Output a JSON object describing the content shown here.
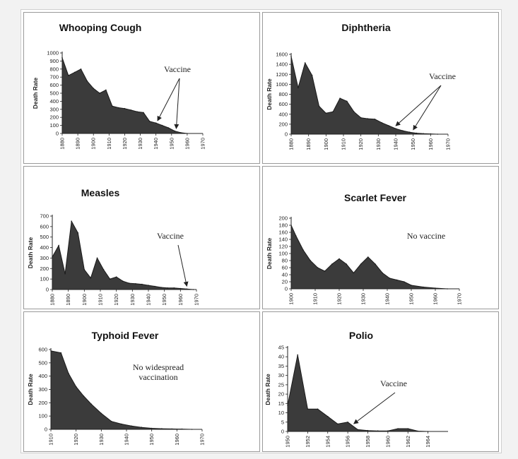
{
  "chart_data": [
    {
      "type": "area",
      "title": "Whooping Cough",
      "ylabel": "Death Rate",
      "ylim": [
        0,
        1000
      ],
      "yticks": [
        0,
        100,
        200,
        300,
        400,
        500,
        600,
        700,
        800,
        900,
        1000
      ],
      "xlim": [
        1880,
        1970
      ],
      "xticks": [
        "1880",
        "1890",
        "1900",
        "1910",
        "1920",
        "1930",
        "1940",
        "1950",
        "1960",
        "1970"
      ],
      "x": [
        1880,
        1884,
        1888,
        1892,
        1896,
        1900,
        1904,
        1908,
        1912,
        1916,
        1920,
        1924,
        1928,
        1932,
        1936,
        1940,
        1944,
        1948,
        1952,
        1956,
        1960
      ],
      "values": [
        940,
        720,
        760,
        800,
        650,
        560,
        500,
        540,
        340,
        320,
        310,
        290,
        270,
        260,
        150,
        130,
        100,
        70,
        30,
        10,
        0
      ],
      "annotation": "Vaccine",
      "arrows_x": [
        1941,
        1953
      ]
    },
    {
      "type": "area",
      "title": "Diphtheria",
      "ylabel": "Death Rate",
      "ylim": [
        0,
        1600
      ],
      "yticks": [
        0,
        200,
        400,
        600,
        800,
        1000,
        1200,
        1400,
        1600
      ],
      "xlim": [
        1880,
        1970
      ],
      "xticks": [
        "1880",
        "1890",
        "1900",
        "1910",
        "1920",
        "1930",
        "1940",
        "1950",
        "1960",
        "1970"
      ],
      "x": [
        1880,
        1884,
        1888,
        1892,
        1896,
        1900,
        1904,
        1908,
        1912,
        1916,
        1920,
        1924,
        1928,
        1932,
        1936,
        1940,
        1944,
        1948,
        1952,
        1956,
        1960,
        1964
      ],
      "values": [
        1560,
        930,
        1430,
        1180,
        560,
        420,
        450,
        720,
        660,
        450,
        330,
        310,
        300,
        230,
        170,
        110,
        70,
        40,
        20,
        10,
        5,
        0
      ],
      "annotation": "Vaccine",
      "arrows_x": [
        1940,
        1950
      ]
    },
    {
      "type": "area",
      "title": "Measles",
      "ylabel": "Death Rate",
      "ylim": [
        0,
        700
      ],
      "yticks": [
        0,
        100,
        200,
        300,
        400,
        500,
        600,
        700
      ],
      "xlim": [
        1880,
        1970
      ],
      "xticks": [
        "1880",
        "1890",
        "1900",
        "1910",
        "1920",
        "1930",
        "1940",
        "1950",
        "1960",
        "1970"
      ],
      "x": [
        1880,
        1884,
        1888,
        1892,
        1896,
        1900,
        1904,
        1908,
        1912,
        1916,
        1920,
        1924,
        1928,
        1932,
        1936,
        1940,
        1944,
        1948,
        1952,
        1956,
        1960,
        1964,
        1968
      ],
      "values": [
        310,
        420,
        150,
        650,
        540,
        190,
        110,
        300,
        190,
        100,
        120,
        80,
        60,
        55,
        50,
        40,
        30,
        20,
        15,
        15,
        10,
        5,
        0
      ],
      "annotation": "Vaccine",
      "arrows_x": [
        1964
      ]
    },
    {
      "type": "area",
      "title": "Scarlet Fever",
      "ylabel": "Death Rate",
      "ylim": [
        0,
        200
      ],
      "yticks": [
        0,
        20,
        40,
        60,
        80,
        100,
        120,
        140,
        160,
        180,
        200
      ],
      "xlim": [
        1900,
        1970
      ],
      "xticks": [
        "1900",
        "1910",
        "1920",
        "1930",
        "1940",
        "1950",
        "1960",
        "1970"
      ],
      "x": [
        1900,
        1902,
        1905,
        1908,
        1911,
        1914,
        1917,
        1920,
        1923,
        1926,
        1929,
        1932,
        1935,
        1938,
        1941,
        1944,
        1947,
        1950,
        1955,
        1960,
        1965
      ],
      "values": [
        180,
        150,
        110,
        80,
        60,
        50,
        70,
        85,
        70,
        45,
        70,
        90,
        70,
        45,
        30,
        25,
        20,
        10,
        5,
        2,
        0
      ],
      "annotation": "No vaccine",
      "arrows_x": []
    },
    {
      "type": "area",
      "title": "Typhoid Fever",
      "ylabel": "Death Rate",
      "ylim": [
        0,
        600
      ],
      "yticks": [
        0,
        100,
        200,
        300,
        400,
        500,
        600
      ],
      "xlim": [
        1910,
        1970
      ],
      "xticks": [
        "1910",
        "1920",
        "1930",
        "1940",
        "1950",
        "1960",
        "1970"
      ],
      "x": [
        1910,
        1914,
        1917,
        1920,
        1923,
        1926,
        1930,
        1934,
        1938,
        1942,
        1946,
        1950,
        1954,
        1958,
        1962,
        1966
      ],
      "values": [
        590,
        575,
        420,
        320,
        250,
        190,
        120,
        60,
        40,
        25,
        15,
        8,
        5,
        3,
        2,
        0
      ],
      "annotation": "No widespread vaccination",
      "arrows_x": []
    },
    {
      "type": "area",
      "title": "Polio",
      "ylabel": "Death Rate",
      "ylim": [
        0,
        45
      ],
      "yticks": [
        0,
        5,
        10,
        15,
        20,
        25,
        30,
        35,
        40,
        45
      ],
      "xlim": [
        1950,
        1966
      ],
      "xticks": [
        "1950",
        "1952",
        "1954",
        "1956",
        "1958",
        "1960",
        "1962",
        "1964"
      ],
      "x": [
        1950,
        1951,
        1952,
        1953,
        1954,
        1955,
        1956,
        1957,
        1958,
        1959,
        1960,
        1961,
        1962,
        1963,
        1964
      ],
      "values": [
        14,
        41,
        12,
        12,
        8,
        4,
        5,
        1,
        0.5,
        0.3,
        0.3,
        1.5,
        1.5,
        0.2,
        0
      ],
      "annotation": "Vaccine",
      "arrows_x": [
        1956.6
      ]
    }
  ]
}
